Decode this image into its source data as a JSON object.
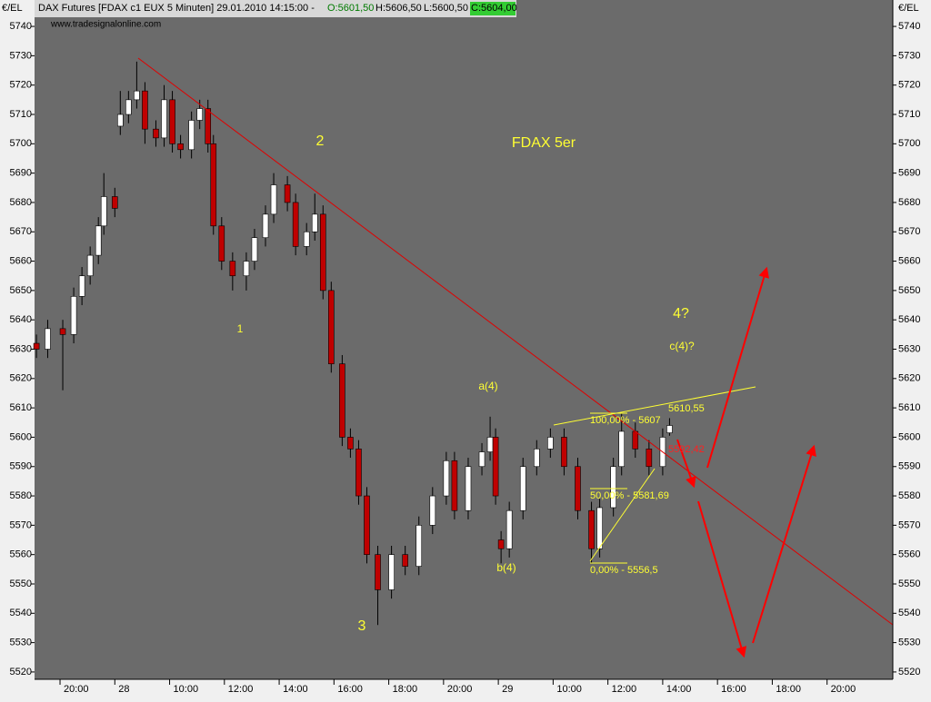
{
  "header": {
    "title": "DAX Futures [FDAX c1 EUX  5 Minuten] 29.01.2010 14:15:00 -",
    "open": "O:5601,50",
    "high": "H:5606,50",
    "low": "L:5600,50",
    "close": "C:5604,00",
    "source": "www.tradesignalonline.com"
  },
  "chart_data": {
    "type": "candlestick",
    "y_label": "€/EL",
    "up_color": "#ffffff",
    "down_color": "#c00000",
    "background": "#6b6b6b",
    "x": [
      -0.86,
      -0.45,
      0.1,
      0.5,
      0.8,
      1.1,
      1.4,
      1.6,
      2.0,
      2.2,
      2.5,
      2.8,
      3.1,
      3.5,
      3.8,
      4.1,
      4.4,
      4.8,
      5.1,
      5.4,
      5.6,
      5.9,
      6.3,
      6.8,
      7.1,
      7.5,
      7.8,
      8.3,
      8.6,
      9.0,
      9.3,
      9.6,
      9.9,
      10.3,
      10.6,
      10.9,
      11.2,
      11.6,
      12.1,
      12.6,
      13.1,
      13.6,
      14.1,
      14.4,
      14.9,
      15.4,
      15.7,
      15.9,
      16.1,
      16.4,
      16.9,
      17.4,
      17.9,
      18.4,
      18.9,
      19.4,
      19.7,
      20.2,
      20.5,
      21.0,
      21.5,
      22.0,
      22.25
    ],
    "open": [
      5632,
      5630,
      5637,
      5635,
      5648,
      5655,
      5662,
      5672,
      5682,
      5706,
      5710,
      5715,
      5718,
      5705,
      5702,
      5715,
      5700,
      5698,
      5708,
      5712,
      5700,
      5672,
      5660,
      5655,
      5660,
      5668,
      5676,
      5686,
      5680,
      5665,
      5670,
      5676,
      5650,
      5625,
      5600,
      5596,
      5580,
      5560,
      5548,
      5560,
      5556,
      5570,
      5580,
      5592,
      5575,
      5590,
      5595,
      5600,
      5565,
      5562,
      5575,
      5590,
      5596,
      5600,
      5590,
      5575,
      5562,
      5576,
      5590,
      5602,
      5596,
      5590,
      5601.5
    ],
    "high": [
      5635,
      5640,
      5640,
      5651,
      5658,
      5665,
      5675,
      5690,
      5685,
      5718,
      5718,
      5728,
      5721,
      5708,
      5720,
      5718,
      5703,
      5711,
      5715,
      5715,
      5703,
      5675,
      5663,
      5663,
      5671,
      5679,
      5690,
      5689,
      5683,
      5673,
      5683,
      5679,
      5653,
      5628,
      5603,
      5599,
      5583,
      5563,
      5563,
      5563,
      5573,
      5583,
      5595,
      5595,
      5593,
      5598,
      5607,
      5603,
      5568,
      5578,
      5593,
      5599,
      5603,
      5603,
      5593,
      5578,
      5579,
      5593,
      5608,
      5605,
      5599,
      5603,
      5606.5
    ],
    "low": [
      5627,
      5627,
      5616,
      5632,
      5645,
      5652,
      5659,
      5669,
      5675,
      5703,
      5707,
      5712,
      5700,
      5699,
      5699,
      5697,
      5695,
      5695,
      5705,
      5697,
      5669,
      5657,
      5650,
      5650,
      5657,
      5665,
      5673,
      5677,
      5662,
      5662,
      5667,
      5647,
      5622,
      5597,
      5593,
      5577,
      5557,
      5536,
      5545,
      5553,
      5553,
      5567,
      5577,
      5572,
      5572,
      5587,
      5592,
      5577,
      5557,
      5559,
      5572,
      5587,
      5593,
      5587,
      5572,
      5557,
      5559,
      5573,
      5587,
      5593,
      5587,
      5587,
      5600.5
    ],
    "close": [
      5630,
      5637,
      5635,
      5648,
      5655,
      5662,
      5672,
      5682,
      5678,
      5710,
      5715,
      5718,
      5705,
      5702,
      5715,
      5700,
      5698,
      5708,
      5712,
      5700,
      5672,
      5660,
      5655,
      5660,
      5668,
      5676,
      5686,
      5680,
      5665,
      5670,
      5676,
      5650,
      5625,
      5600,
      5596,
      5580,
      5560,
      5548,
      5560,
      5556,
      5570,
      5580,
      5592,
      5575,
      5590,
      5595,
      5600,
      5580,
      5562,
      5575,
      5590,
      5596,
      5600,
      5590,
      5575,
      5562,
      5576,
      5590,
      5602,
      5596,
      5590,
      5600,
      5604
    ],
    "xlim": [
      -0.93,
      30.4
    ],
    "xticks": [
      {
        "value": 0,
        "label": "20:00"
      },
      {
        "value": 2,
        "label": "28"
      },
      {
        "value": 4,
        "label": "10:00"
      },
      {
        "value": 6,
        "label": "12:00"
      },
      {
        "value": 8,
        "label": "14:00"
      },
      {
        "value": 10,
        "label": "16:00"
      },
      {
        "value": 12,
        "label": "18:00"
      },
      {
        "value": 14,
        "label": "20:00"
      },
      {
        "value": 16,
        "label": "29"
      },
      {
        "value": 18,
        "label": "10:00"
      },
      {
        "value": 20,
        "label": "12:00"
      },
      {
        "value": 22,
        "label": "14:00"
      },
      {
        "value": 24,
        "label": "16:00"
      },
      {
        "value": 26,
        "label": "18:00"
      },
      {
        "value": 28,
        "label": "20:00"
      }
    ],
    "ylim": [
      5517.5,
      5749
    ],
    "yticks": [
      5520,
      5530,
      5540,
      5550,
      5560,
      5570,
      5580,
      5590,
      5600,
      5610,
      5620,
      5630,
      5640,
      5650,
      5660,
      5670,
      5680,
      5690,
      5700,
      5710,
      5720,
      5730,
      5740
    ],
    "annotations": [
      "1",
      "2",
      "3",
      "4?",
      "FDAX 5er",
      "a(4)",
      "b(4)",
      "c(4)?",
      "100,00% - 5607",
      "50,00% - 5581,69",
      "0,00% - 5556,5",
      "5610,55",
      "5592,42"
    ]
  }
}
